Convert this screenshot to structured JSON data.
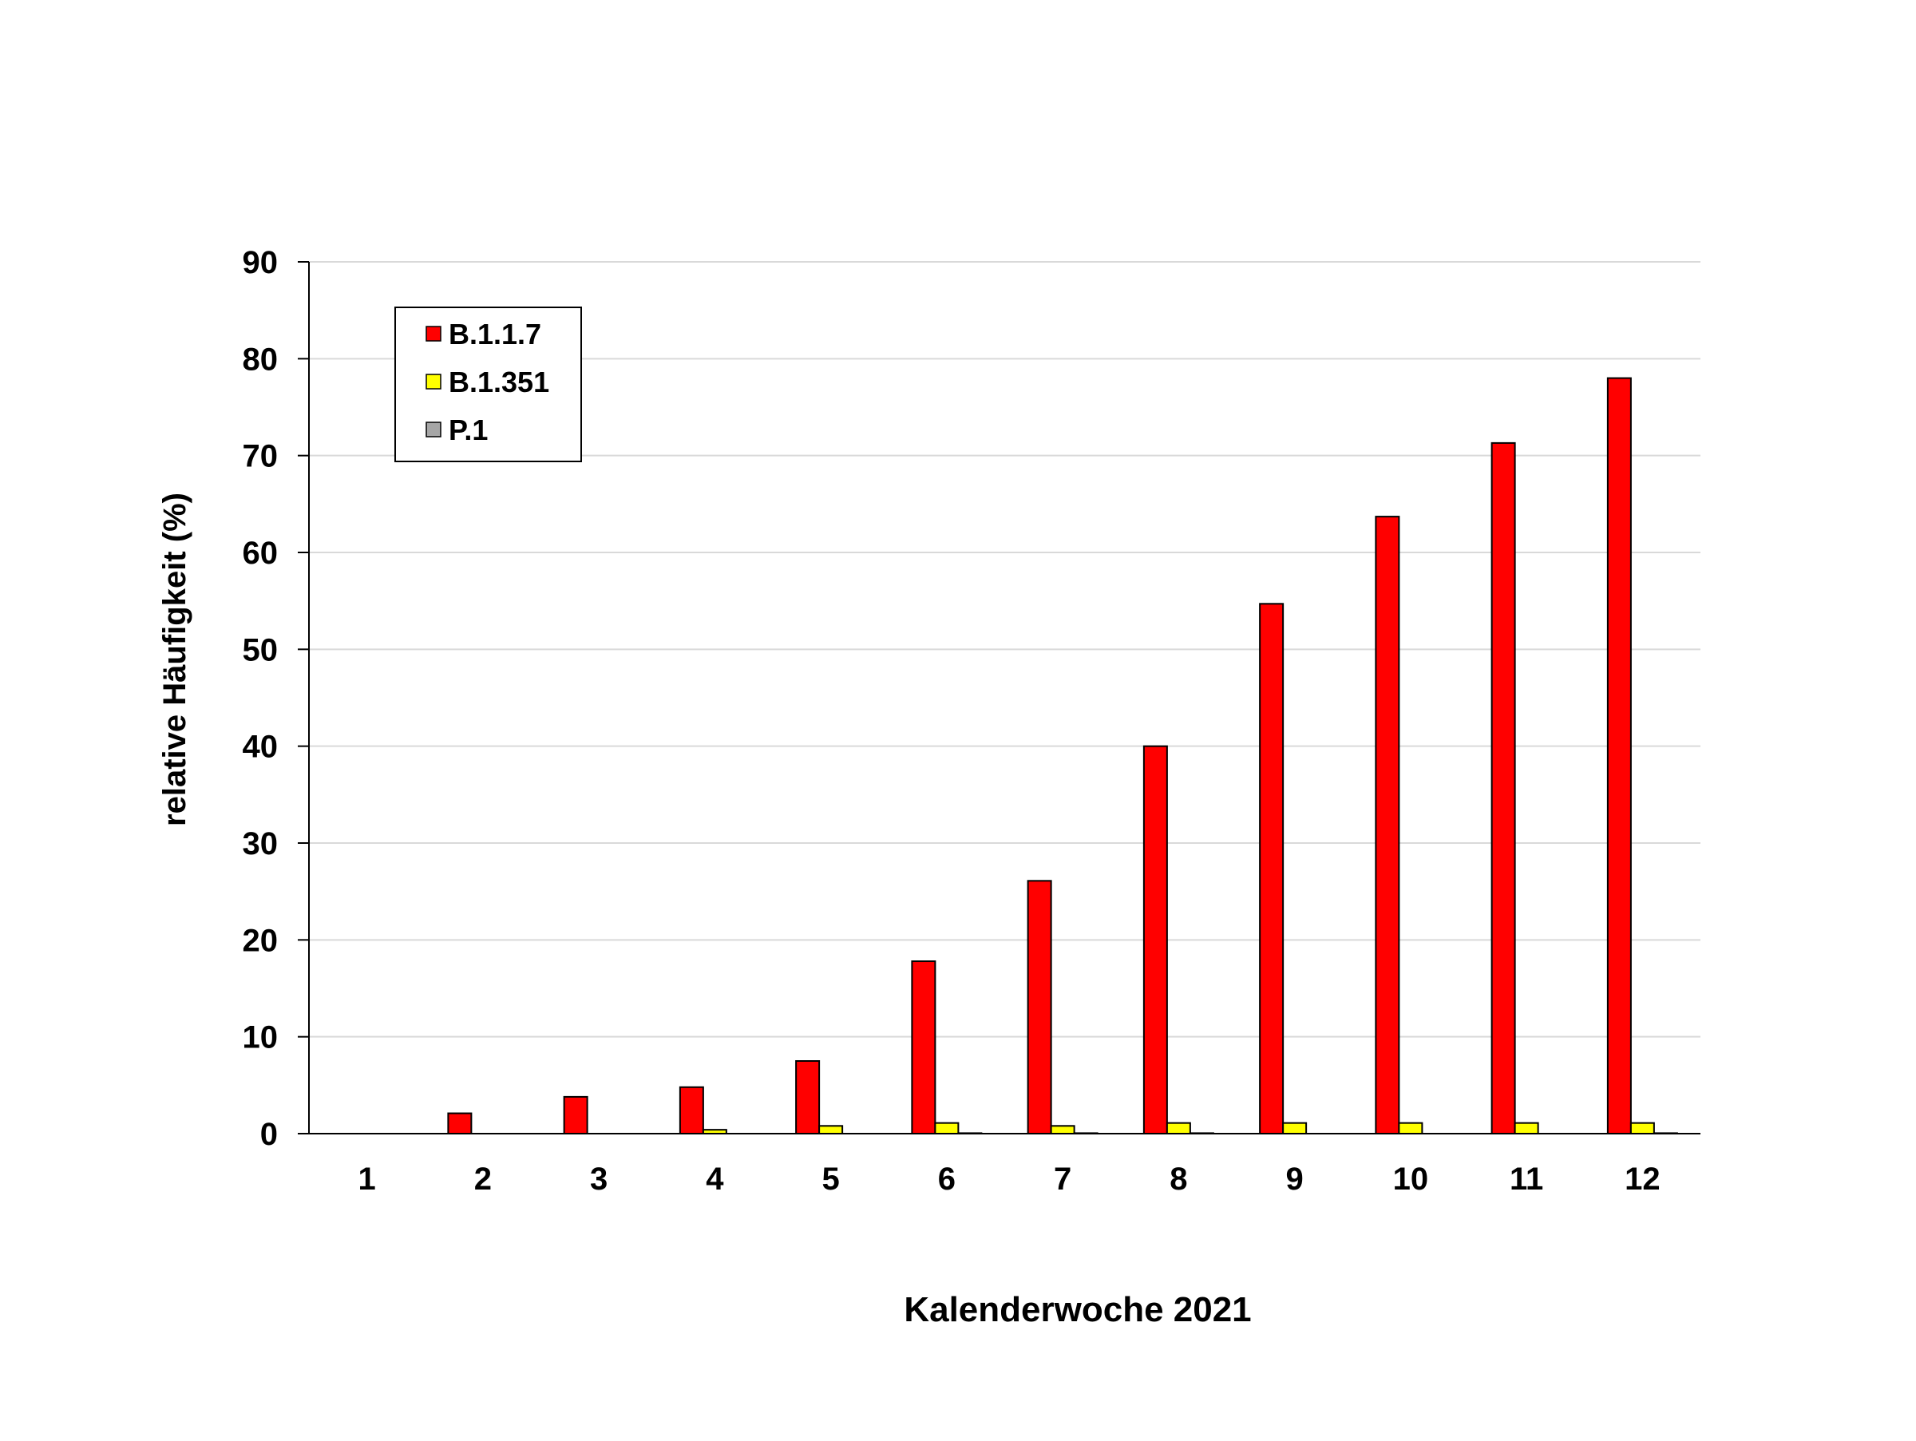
{
  "chart_data": {
    "type": "bar",
    "xlabel": "Kalenderwoche 2021",
    "ylabel": "relative Häufigkeit (%)",
    "ylim": [
      0,
      90
    ],
    "yticks": [
      0,
      10,
      20,
      30,
      40,
      50,
      60,
      70,
      80,
      90
    ],
    "grid": "horizontal",
    "legend_position": "top-left",
    "categories": [
      "1",
      "2",
      "3",
      "4",
      "5",
      "6",
      "7",
      "8",
      "9",
      "10",
      "11",
      "12"
    ],
    "series": [
      {
        "name": "B.1.1.7",
        "color": "#ff0000",
        "values": [
          0,
          2.1,
          3.8,
          4.8,
          7.5,
          17.8,
          26.1,
          40.0,
          54.7,
          63.7,
          71.3,
          78.0
        ]
      },
      {
        "name": "B.1.351",
        "color": "#ffff00",
        "values": [
          0,
          0,
          0,
          0.4,
          0.8,
          1.1,
          0.8,
          1.1,
          1.1,
          1.1,
          1.1,
          1.1
        ]
      },
      {
        "name": "P.1",
        "color": "#a6a6a6",
        "values": [
          0,
          0,
          0,
          0,
          0,
          0.05,
          0.05,
          0.05,
          0,
          0,
          0,
          0.05
        ]
      }
    ]
  }
}
